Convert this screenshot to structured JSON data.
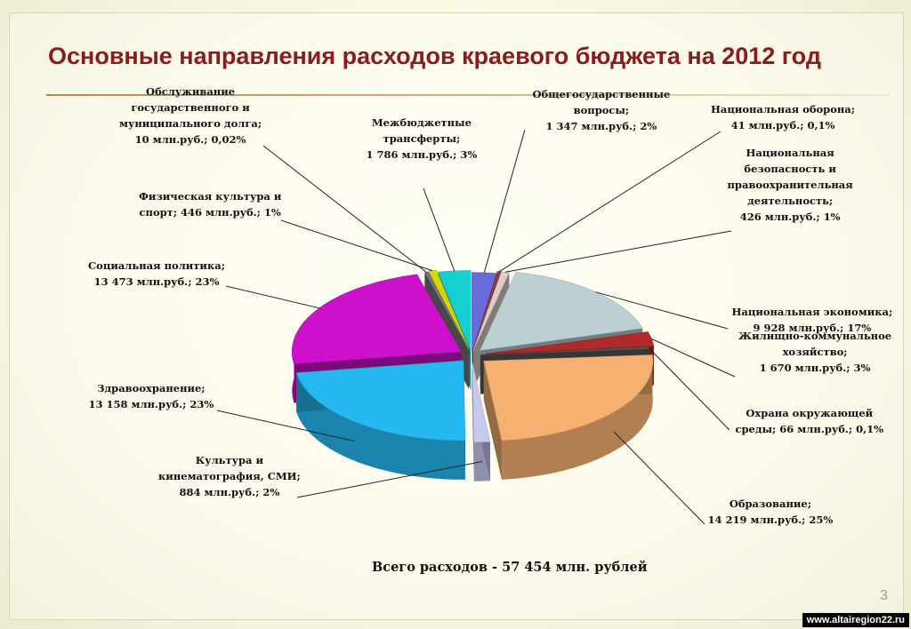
{
  "title": "Основные направления расходов краевого бюджета на 2012 год",
  "total": "Всего расходов - 57 454 млн. рублей",
  "page_number": "3",
  "watermark": "www.altairegion22.ru",
  "chart_data": {
    "type": "pie",
    "title": "Основные направления расходов краевого бюджета на 2012 год",
    "unit": "млн.руб.",
    "total_label": "Всего расходов - 57 454 млн. рублей",
    "slices": [
      {
        "name": "Общегосударственные вопросы",
        "value": 1347,
        "percent": 2,
        "color": "#6a6ad8",
        "label": [
          "Общегосударственные",
          "вопросы;",
          "1 347 млн.руб.; 2%"
        ]
      },
      {
        "name": "Национальная оборона",
        "value": 41,
        "percent": 0.1,
        "color": "#8a3a3a",
        "label": [
          "Национальная оборона;",
          "41 млн.руб.; 0,1%"
        ]
      },
      {
        "name": "Национальная безопасность и правоохранительная деятельность",
        "value": 426,
        "percent": 1,
        "color": "#d8cfc8",
        "label": [
          "Национальная",
          "безопасность и",
          "правоохранительная",
          "деятельность;",
          "426 млн.руб.; 1%"
        ]
      },
      {
        "name": "Национальная экономика",
        "value": 9928,
        "percent": 17,
        "color": "#bcd0d4",
        "label": [
          "Национальная экономика;",
          "9 928 млн.руб.; 17%"
        ]
      },
      {
        "name": "Жилищно-коммунальное хозяйство",
        "value": 1670,
        "percent": 3,
        "color": "#b02a2a",
        "label": [
          "Жилищно-коммунальное",
          "хозяйство;",
          "1 670 млн.руб.; 3%"
        ]
      },
      {
        "name": "Охрана окружающей среды",
        "value": 66,
        "percent": 0.1,
        "color": "#5a5a5a",
        "label": [
          "Охрана окружающей",
          "среды; 66 млн.руб.; 0,1%"
        ]
      },
      {
        "name": "Образование",
        "value": 14219,
        "percent": 25,
        "color": "#f6b070",
        "label": [
          "Образование;",
          "14 219 млн.руб.; 25%"
        ]
      },
      {
        "name": "Культура и кинематография, СМИ",
        "value": 884,
        "percent": 2,
        "color": "#c8c8ee",
        "label": [
          "Культура и",
          "кинематография, СМИ;",
          "884 млн.руб.; 2%"
        ]
      },
      {
        "name": "Здравоохранение",
        "value": 13158,
        "percent": 23,
        "color": "#26b8f0",
        "label": [
          "Здравоохранение;",
          "13 158 млн.руб.; 23%"
        ]
      },
      {
        "name": "Социальная политика",
        "value": 13473,
        "percent": 23,
        "color": "#cc10cc",
        "label": [
          "Социальная политика;",
          "13 473 млн.руб.; 23%"
        ]
      },
      {
        "name": "Обслуживание государственного и муниципального долга",
        "value": 10,
        "percent": 0.02,
        "color": "#777777",
        "label": [
          "Обслуживание",
          "государственного и",
          "муниципального долга;",
          "10 млн.руб.; 0,02%"
        ]
      },
      {
        "name": "Физическая культура и спорт",
        "value": 446,
        "percent": 1,
        "color": "#d8d800",
        "label": [
          "Физическая культура и",
          "спорт; 446 млн.руб.; 1%"
        ]
      },
      {
        "name": "Межбюджетные трансферты",
        "value": 1786,
        "percent": 3,
        "color": "#16d0d0",
        "label": [
          "Межбюджетные",
          "трансферты;",
          "1 786 млн.руб.; 3%"
        ]
      }
    ]
  }
}
